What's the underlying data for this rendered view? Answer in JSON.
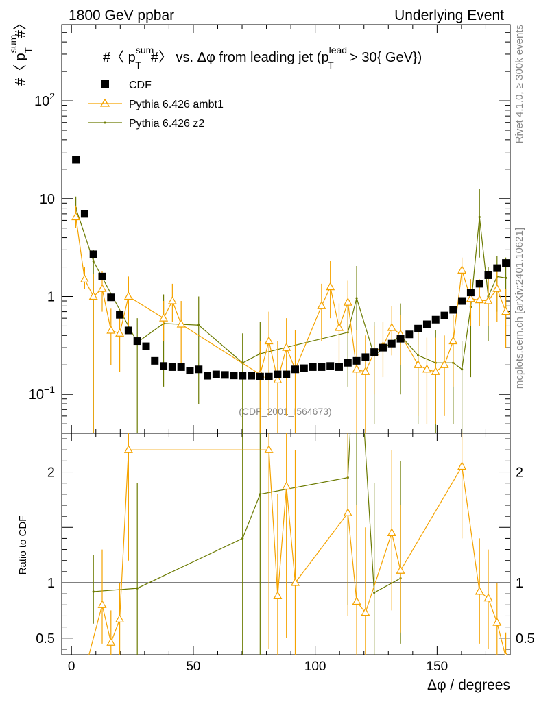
{
  "header": {
    "left": "1800 GeV ppbar",
    "right": "Underlying Event"
  },
  "side": {
    "rivet": "Rivet 4.1.0, ≥ 300k events",
    "mcplots": "mcplots.cern.ch [arXiv:2401.10621]"
  },
  "colors": {
    "cdf": "#000000",
    "ambt1": "#f5a300",
    "z2": "#6b7a00"
  },
  "chart_data": {
    "type": "scatter",
    "title": "#〈 p_T^sum # 〉 vs. Δφ from leading jet  (p_T^lead > 30{ GeV})",
    "title_parts": {
      "t1": "#〈 p",
      "sum": "sum",
      "T": "T",
      "t2": "#〉 vs. Δφ from leading jet  (p",
      "lead": "lead",
      "T2": "T",
      "t3": " > 30{ GeV})"
    },
    "ylabel_parts": {
      "pre": "#〈 p",
      "sup": "sum",
      "sub": "T",
      "post": "#〉"
    },
    "xlabel": "Δφ / degrees",
    "ratio_ylabel": "Ratio to CDF",
    "watermark": "(CDF_2001_I564673)",
    "xlim": [
      -4,
      180
    ],
    "ylim": [
      0.04,
      600
    ],
    "yscale": "log",
    "ratio_ylim": [
      0.35,
      2.35
    ],
    "x_ticks": [
      "0",
      "50",
      "100",
      "150"
    ],
    "y_ticks": [
      {
        "label": "10",
        "sup": "−1",
        "value": 0.1
      },
      {
        "label": "1",
        "sup": "",
        "value": 1
      },
      {
        "label": "10",
        "sup": "",
        "value": 10
      },
      {
        "label": "10",
        "sup": "2",
        "value": 100
      }
    ],
    "ratio_ticks": [
      "0.5",
      "1",
      "2"
    ],
    "legend": [
      "CDF",
      "Pythia 6.426 ambt1",
      "Pythia 6.426 z2"
    ],
    "series": [
      {
        "name": "CDF",
        "x": [
          1.8,
          5.4,
          9,
          12.6,
          16.2,
          19.8,
          23.4,
          27,
          30.6,
          34.2,
          37.8,
          41.4,
          45,
          48.6,
          52.2,
          55.8,
          59.4,
          63,
          66.6,
          70.2,
          73.8,
          77.4,
          81,
          84.6,
          88.2,
          91.8,
          95.4,
          99,
          102.6,
          106.2,
          109.8,
          113.4,
          117,
          120.6,
          124.2,
          127.8,
          131.4,
          135,
          138.6,
          142.2,
          145.8,
          149.4,
          153,
          156.6,
          160.2,
          163.8,
          167.4,
          171,
          174.6,
          178.2
        ],
        "y": [
          25,
          7,
          2.7,
          1.6,
          0.98,
          0.65,
          0.45,
          0.35,
          0.31,
          0.22,
          0.195,
          0.19,
          0.19,
          0.175,
          0.18,
          0.155,
          0.16,
          0.158,
          0.156,
          0.155,
          0.155,
          0.152,
          0.152,
          0.16,
          0.16,
          0.18,
          0.185,
          0.19,
          0.19,
          0.195,
          0.19,
          0.21,
          0.22,
          0.24,
          0.27,
          0.3,
          0.33,
          0.37,
          0.41,
          0.47,
          0.52,
          0.58,
          0.64,
          0.73,
          0.9,
          1.1,
          1.35,
          1.65,
          1.95,
          2.2
        ]
      },
      {
        "name": "Pythia 6.426 ambt1",
        "x": [
          1.8,
          5.4,
          9,
          12.6,
          16.2,
          19.8,
          23.4,
          37.8,
          41.4,
          45,
          77.4,
          81,
          84.6,
          88.2,
          91.8,
          102.6,
          106.2,
          109.8,
          113.4,
          117,
          120.6,
          124.2,
          127.8,
          131.4,
          135,
          142.2,
          145.8,
          149.4,
          153,
          156.6,
          160.2,
          163.8,
          167.4,
          171,
          174.6,
          178.2
        ],
        "y": [
          6.5,
          1.5,
          1.0,
          1.2,
          0.45,
          0.42,
          1.0,
          0.6,
          0.9,
          0.52,
          0.16,
          0.35,
          0.14,
          0.3,
          0.18,
          0.8,
          1.25,
          0.48,
          0.87,
          0.18,
          0.17,
          0.27,
          0.31,
          0.48,
          0.41,
          0.2,
          0.18,
          0.17,
          0.2,
          0.35,
          1.85,
          0.95,
          0.92,
          0.9,
          1.2,
          0.7
        ],
        "lo": [
          5.0,
          1.2,
          0.03,
          0.7,
          0.2,
          0.17,
          0.5,
          0.35,
          0.55,
          0.2,
          0.04,
          0.06,
          0.02,
          0.06,
          0.03,
          0.35,
          0.6,
          0.18,
          0.4,
          0.03,
          0.03,
          0.1,
          0.15,
          0.25,
          0.2,
          0.06,
          0.05,
          0.05,
          0.06,
          0.12,
          1.3,
          0.5,
          0.5,
          0.5,
          0.55,
          0.3
        ],
        "hi": [
          8.5,
          2.0,
          1.7,
          1.8,
          0.75,
          0.7,
          1.6,
          0.9,
          1.35,
          0.9,
          0.35,
          0.7,
          0.35,
          0.6,
          0.45,
          1.35,
          2.3,
          0.85,
          1.45,
          0.45,
          0.4,
          0.5,
          0.55,
          0.8,
          0.65,
          0.45,
          0.38,
          0.38,
          0.4,
          0.65,
          2.5,
          1.5,
          1.5,
          1.5,
          1.9,
          1.2
        ]
      },
      {
        "name": "Pythia 6.426 z2",
        "x": [
          1.8,
          9,
          27,
          37.8,
          52.2,
          70.2,
          77.4,
          113.4,
          117,
          124.2,
          135,
          142.2,
          149.4,
          156.6,
          160.2,
          163.8,
          167.4,
          171,
          174.6,
          178.2
        ],
        "y": [
          8.0,
          2.3,
          0.34,
          0.53,
          0.51,
          0.21,
          0.26,
          0.43,
          0.96,
          0.25,
          0.4,
          0.25,
          0.21,
          0.21,
          0.18,
          0.78,
          6.5,
          1.0,
          1.6,
          1.55
        ],
        "lo": [
          6.0,
          0.03,
          0.03,
          0.12,
          0.08,
          0.02,
          0.04,
          0.12,
          0.25,
          0.05,
          0.1,
          0.05,
          0.03,
          0.05,
          0.03,
          0.15,
          2.5,
          0.35,
          0.7,
          0.6
        ],
        "hi": [
          10.5,
          3.0,
          0.6,
          1.05,
          1.0,
          0.42,
          0.55,
          0.85,
          2.05,
          0.55,
          0.85,
          0.5,
          0.45,
          0.4,
          0.35,
          1.5,
          12.5,
          2.0,
          2.6,
          2.5
        ]
      }
    ],
    "ratio_series": [
      {
        "name": "Pythia 6.426 ambt1",
        "x": [
          5.4,
          12.6,
          16.2,
          19.8,
          23.4,
          81,
          84.6,
          88.2,
          91.8,
          113.4,
          117,
          120.6,
          131.4,
          135,
          160.2,
          167.4,
          171,
          174.6,
          178.2
        ],
        "y": [
          0.2,
          0.8,
          0.46,
          0.67,
          2.2,
          2.2,
          0.88,
          1.87,
          1.0,
          1.63,
          0.83,
          0.73,
          1.45,
          1.11,
          2.05,
          0.92,
          0.86,
          0.64,
          0.33
        ],
        "lo": [
          0.17,
          0.45,
          0.2,
          0.35,
          1.2,
          0.4,
          0.15,
          0.5,
          0.2,
          0.7,
          0.25,
          0.2,
          0.75,
          0.55,
          1.4,
          0.45,
          0.4,
          0.3,
          0.15
        ],
        "hi": [
          0.3,
          1.3,
          0.75,
          1.0,
          2.6,
          3.5,
          1.8,
          3.5,
          2.2,
          2.5,
          1.7,
          1.5,
          2.2,
          1.7,
          2.7,
          1.4,
          1.3,
          1.0,
          0.55
        ]
      },
      {
        "name": "Pythia 6.426 z2",
        "x": [
          9,
          27,
          70.2,
          77.4,
          113.4,
          117,
          124.2,
          135
        ],
        "y": [
          0.92,
          0.95,
          1.4,
          1.8,
          1.95,
          3.5,
          0.91,
          1.04
        ],
        "lo": [
          0.63,
          0.1,
          0.1,
          0.2,
          0.8,
          0.9,
          0.25,
          0.45
        ],
        "hi": [
          1.25,
          1.9,
          2.8,
          3.5,
          3.5,
          5.0,
          1.9,
          2.1
        ]
      }
    ]
  }
}
